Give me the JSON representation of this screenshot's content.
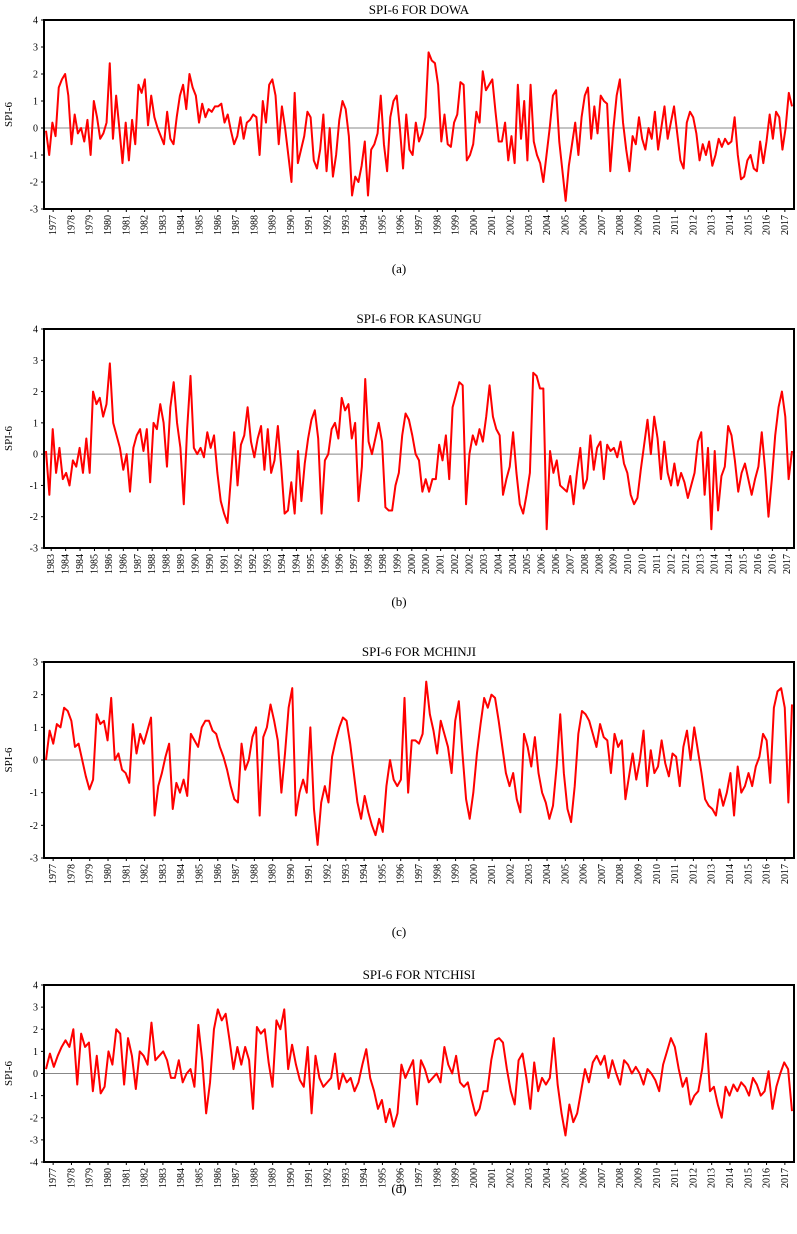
{
  "chart_data": [
    {
      "type": "line",
      "title": "SPI-6 FOR DOWA",
      "ylabel": "SPI-6",
      "caption": "(a)",
      "ylim": [
        -3,
        4
      ],
      "yticks": [
        "-3",
        "-2",
        "-1",
        "0",
        "1",
        "2",
        "3",
        "4"
      ],
      "xticks": [
        "1977",
        "1978",
        "1979",
        "1980",
        "1981",
        "1982",
        "1983",
        "1984",
        "1985",
        "1986",
        "1987",
        "1988",
        "1989",
        "1990",
        "1991",
        "1992",
        "1993",
        "1994",
        "1995",
        "1996",
        "1997",
        "1998",
        "1999",
        "2000",
        "2001",
        "2002",
        "2003",
        "2004",
        "2005",
        "2006",
        "2007",
        "2008",
        "2009",
        "2010",
        "2011",
        "2012",
        "2013",
        "2014",
        "2015",
        "2016",
        "2017"
      ],
      "series_color": "#ff0000",
      "series": [
        {
          "x_start": 1977.0,
          "x_end": 2017.9,
          "values": [
            -0.1,
            -1.0,
            0.2,
            -0.3,
            1.5,
            1.8,
            2.0,
            1.2,
            -0.6,
            0.5,
            -0.2,
            0.0,
            -0.5,
            0.3,
            -1.0,
            1.0,
            0.4,
            -0.4,
            -0.2,
            0.2,
            2.4,
            -0.4,
            1.2,
            0.0,
            -1.3,
            0.2,
            -1.2,
            0.3,
            -0.6,
            1.6,
            1.3,
            1.8,
            0.1,
            1.2,
            0.4,
            0.0,
            -0.3,
            -0.6,
            0.6,
            -0.4,
            -0.6,
            0.4,
            1.2,
            1.6,
            0.7,
            2.0,
            1.5,
            1.2,
            0.2,
            0.9,
            0.4,
            0.7,
            0.6,
            0.8,
            0.8,
            0.9,
            0.2,
            0.5,
            -0.1,
            -0.6,
            -0.3,
            0.4,
            -0.4,
            0.2,
            0.3,
            0.5,
            0.4,
            -1.0,
            1.0,
            0.2,
            1.6,
            1.8,
            1.2,
            -0.6,
            0.8,
            0.0,
            -1.0,
            -2.0,
            1.3,
            -1.3,
            -0.8,
            -0.3,
            0.6,
            0.4,
            -1.2,
            -1.5,
            -0.8,
            0.5,
            -1.6,
            0.0,
            -1.8,
            -1.0,
            0.3,
            1.0,
            0.7,
            -0.3,
            -2.5,
            -1.8,
            -2.0,
            -1.4,
            -0.5,
            -2.5,
            -0.8,
            -0.6,
            -0.2,
            1.2,
            -0.6,
            -1.6,
            0.4,
            1.0,
            1.2,
            0.0,
            -1.5,
            0.5,
            -0.8,
            -1.0,
            0.2,
            -0.5,
            -0.2,
            0.4,
            2.8,
            2.5,
            2.4,
            1.6,
            -0.5,
            0.5,
            -0.6,
            -0.7,
            0.2,
            0.5,
            1.7,
            1.6,
            -1.2,
            -1.0,
            -0.6,
            0.6,
            0.2,
            2.1,
            1.4,
            1.6,
            1.8,
            0.6,
            -0.5,
            -0.5,
            0.2,
            -1.2,
            -0.3,
            -1.3,
            1.6,
            -0.4,
            1.0,
            -1.2,
            1.6,
            -0.5,
            -1.0,
            -1.3,
            -2.0,
            -1.0,
            0.0,
            1.2,
            1.4,
            -0.5,
            -1.6,
            -2.7,
            -1.4,
            -0.6,
            0.2,
            -1.0,
            0.4,
            1.2,
            1.5,
            -0.4,
            0.8,
            -0.2,
            1.2,
            1.0,
            0.9,
            -1.6,
            0.0,
            1.2,
            1.8,
            0.2,
            -0.8,
            -1.6,
            -0.3,
            -0.6,
            0.4,
            -0.4,
            -0.8,
            0.0,
            -0.4,
            0.6,
            -0.8,
            0.0,
            0.8,
            -0.4,
            0.2,
            0.8,
            -0.2,
            -1.2,
            -1.5,
            0.2,
            0.6,
            0.4,
            -0.2,
            -1.2,
            -0.6,
            -1.0,
            -0.5,
            -1.4,
            -1.0,
            -0.4,
            -0.7,
            -0.4,
            -0.6,
            -0.5,
            0.4,
            -1.0,
            -1.9,
            -1.8,
            -1.2,
            -1.0,
            -1.5,
            -1.6,
            -0.5,
            -1.3,
            -0.5,
            0.5,
            -0.4,
            0.6,
            0.4,
            -0.8,
            0.0,
            1.3,
            0.8
          ]
        }
      ]
    },
    {
      "type": "line",
      "title": "SPI-6 FOR KASUNGU",
      "ylabel": "SPI-6",
      "caption": "(b)",
      "ylim": [
        -3,
        4
      ],
      "yticks": [
        "-3",
        "-2",
        "-1",
        "0",
        "1",
        "2",
        "3",
        "4"
      ],
      "xticks": [
        "1983",
        "1984",
        "1984",
        "1985",
        "1986",
        "1986",
        "1987",
        "1988",
        "1988",
        "1989",
        "1990",
        "1990",
        "1991",
        "1992",
        "1992",
        "1993",
        "1994",
        "1994",
        "1995",
        "1996",
        "1996",
        "1997",
        "1998",
        "1998",
        "1999",
        "2000",
        "2000",
        "2001",
        "2002",
        "2002",
        "2003",
        "2004",
        "2004",
        "2005",
        "2006",
        "2006",
        "2007",
        "2008",
        "2008",
        "2009",
        "2010",
        "2010",
        "2011",
        "2012",
        "2012",
        "2013",
        "2014",
        "2014",
        "2015",
        "2016",
        "2016",
        "2017"
      ],
      "series_color": "#ff0000",
      "series": [
        {
          "x_start": 1983.0,
          "x_end": 2017.9,
          "values": [
            0.1,
            -1.3,
            0.8,
            -0.6,
            0.2,
            -0.8,
            -0.6,
            -1.0,
            -0.2,
            -0.4,
            0.2,
            -0.6,
            0.5,
            -0.6,
            2.0,
            1.6,
            1.8,
            1.2,
            1.6,
            2.9,
            1.0,
            0.6,
            0.2,
            -0.5,
            0.0,
            -1.2,
            0.2,
            0.6,
            0.8,
            0.1,
            0.8,
            -0.9,
            1.0,
            0.8,
            1.6,
            1.0,
            -0.4,
            1.5,
            2.3,
            1.0,
            0.2,
            -1.6,
            0.8,
            2.5,
            0.2,
            0.0,
            0.2,
            -0.1,
            0.7,
            0.2,
            0.6,
            -0.6,
            -1.5,
            -1.9,
            -2.2,
            -0.8,
            0.7,
            -1.0,
            0.3,
            0.6,
            1.5,
            0.4,
            -0.1,
            0.5,
            0.9,
            -0.5,
            0.8,
            -0.6,
            -0.2,
            0.9,
            -0.4,
            -1.9,
            -1.8,
            -0.9,
            -1.9,
            0.1,
            -1.5,
            -0.3,
            0.5,
            1.1,
            1.4,
            0.5,
            -1.9,
            -0.2,
            0.0,
            0.8,
            1.0,
            0.5,
            1.8,
            1.4,
            1.6,
            0.5,
            1.0,
            -1.5,
            -0.4,
            2.4,
            0.4,
            0.0,
            0.5,
            1.0,
            0.4,
            -1.7,
            -1.8,
            -1.8,
            -1.0,
            -0.6,
            0.6,
            1.3,
            1.1,
            0.6,
            0.0,
            -0.2,
            -1.2,
            -0.8,
            -1.2,
            -0.8,
            -0.8,
            0.3,
            -0.2,
            0.6,
            -0.8,
            1.5,
            1.9,
            2.3,
            2.2,
            -1.6,
            0.0,
            0.6,
            0.3,
            0.8,
            0.4,
            1.2,
            2.2,
            1.2,
            0.8,
            0.6,
            -1.3,
            -0.8,
            -0.4,
            0.7,
            -0.6,
            -1.6,
            -1.9,
            -1.3,
            -0.6,
            2.6,
            2.5,
            2.1,
            2.1,
            -2.4,
            0.1,
            -0.6,
            -0.2,
            -1.0,
            -1.1,
            -1.2,
            -0.7,
            -1.6,
            -0.6,
            0.2,
            -1.1,
            -0.8,
            0.6,
            -0.5,
            0.2,
            0.4,
            -0.8,
            0.3,
            0.1,
            0.2,
            -0.1,
            0.4,
            -0.3,
            -0.6,
            -1.3,
            -1.6,
            -1.4,
            -0.5,
            0.3,
            1.1,
            0.0,
            1.2,
            0.5,
            -0.8,
            0.4,
            -0.6,
            -1.0,
            -0.3,
            -1.0,
            -0.6,
            -0.9,
            -1.4,
            -1.0,
            -0.6,
            0.4,
            0.7,
            -1.3,
            0.2,
            -2.4,
            0.1,
            -1.8,
            -0.7,
            -0.4,
            0.9,
            0.6,
            -0.2,
            -1.2,
            -0.6,
            -0.3,
            -0.8,
            -1.3,
            -0.8,
            -0.4,
            0.7,
            -0.5,
            -2.0,
            -0.8,
            0.6,
            1.5,
            2.0,
            1.2,
            -0.8,
            0.1
          ]
        }
      ]
    },
    {
      "type": "line",
      "title": "SPI-6 FOR MCHINJI",
      "ylabel": "SPI-6",
      "caption": "(c)",
      "ylim": [
        -3,
        3
      ],
      "yticks": [
        "-3",
        "-2",
        "-1",
        "0",
        "1",
        "2",
        "3"
      ],
      "xticks": [
        "1977",
        "1978",
        "1979",
        "1980",
        "1981",
        "1982",
        "1983",
        "1984",
        "1985",
        "1986",
        "1987",
        "1988",
        "1989",
        "1990",
        "1991",
        "1992",
        "1993",
        "1994",
        "1995",
        "1996",
        "1997",
        "1998",
        "1999",
        "2000",
        "2001",
        "2002",
        "2003",
        "2004",
        "2005",
        "2006",
        "2007",
        "2008",
        "2009",
        "2010",
        "2011",
        "2012",
        "2013",
        "2014",
        "2015",
        "2016",
        "2017"
      ],
      "series_color": "#ff0000",
      "series": [
        {
          "x_start": 1977.0,
          "x_end": 2017.9,
          "values": [
            0.0,
            0.9,
            0.5,
            1.1,
            1.0,
            1.6,
            1.5,
            1.2,
            0.4,
            0.5,
            0.0,
            -0.5,
            -0.9,
            -0.6,
            1.4,
            1.1,
            1.2,
            0.6,
            1.9,
            0.0,
            0.2,
            -0.3,
            -0.4,
            -0.7,
            1.1,
            0.2,
            0.8,
            0.5,
            0.9,
            1.3,
            -1.7,
            -0.8,
            -0.4,
            0.1,
            0.5,
            -1.5,
            -0.7,
            -1.0,
            -0.6,
            -1.1,
            0.8,
            0.6,
            0.4,
            1.0,
            1.2,
            1.2,
            0.9,
            0.8,
            0.4,
            0.1,
            -0.3,
            -0.8,
            -1.2,
            -1.3,
            0.5,
            -0.3,
            0.0,
            0.7,
            1.0,
            -1.7,
            0.7,
            1.0,
            1.7,
            1.2,
            0.6,
            -1.0,
            0.2,
            1.6,
            2.2,
            -1.7,
            -1.0,
            -0.6,
            -1.0,
            1.0,
            -1.5,
            -2.6,
            -1.3,
            -0.8,
            -1.3,
            0.1,
            0.6,
            1.0,
            1.3,
            1.2,
            0.5,
            -0.4,
            -1.3,
            -1.8,
            -1.1,
            -1.6,
            -2.0,
            -2.3,
            -1.8,
            -2.2,
            -0.8,
            0.0,
            -0.6,
            -0.8,
            -0.6,
            1.9,
            -1.0,
            0.6,
            0.6,
            0.5,
            0.8,
            2.4,
            1.4,
            0.9,
            0.2,
            1.2,
            0.8,
            0.4,
            -0.4,
            1.2,
            1.8,
            0.2,
            -1.2,
            -1.8,
            -1.0,
            0.2,
            1.1,
            1.9,
            1.6,
            2.0,
            1.9,
            1.2,
            0.4,
            -0.4,
            -0.8,
            -0.4,
            -1.2,
            -1.6,
            0.8,
            0.4,
            -0.2,
            0.7,
            -0.4,
            -1.0,
            -1.3,
            -1.8,
            -1.4,
            -0.2,
            1.4,
            -0.4,
            -1.5,
            -1.9,
            -0.8,
            0.8,
            1.5,
            1.4,
            1.2,
            0.8,
            0.4,
            1.1,
            0.7,
            0.6,
            -0.4,
            0.8,
            0.4,
            0.6,
            -1.2,
            -0.5,
            0.2,
            -0.6,
            0.0,
            0.9,
            -0.8,
            0.3,
            -0.4,
            -0.2,
            0.6,
            -0.1,
            -0.5,
            0.2,
            0.1,
            -0.8,
            0.4,
            0.9,
            0.0,
            1.0,
            0.3,
            -0.4,
            -1.2,
            -1.4,
            -1.5,
            -1.7,
            -0.9,
            -1.4,
            -1.0,
            -0.4,
            -1.7,
            -0.2,
            -1.0,
            -0.8,
            -0.4,
            -0.8,
            -0.2,
            0.1,
            0.8,
            0.6,
            -0.7,
            1.6,
            2.1,
            2.2,
            1.6,
            -1.3,
            1.7
          ]
        }
      ]
    },
    {
      "type": "line",
      "title": "SPI-6 FOR NTCHISI",
      "ylabel": "SPI-6",
      "caption": "(d)",
      "ylim": [
        -4,
        4
      ],
      "yticks": [
        "-4",
        "-3",
        "-2",
        "-1",
        "0",
        "1",
        "2",
        "3",
        "4"
      ],
      "xticks": [
        "1977",
        "1978",
        "1979",
        "1980",
        "1981",
        "1982",
        "1983",
        "1984",
        "1985",
        "1986",
        "1987",
        "1988",
        "1989",
        "1990",
        "1991",
        "1992",
        "1993",
        "1994",
        "1995",
        "1996",
        "1997",
        "1998",
        "1999",
        "2000",
        "2001",
        "2002",
        "2003",
        "2004",
        "2005",
        "2006",
        "2007",
        "2008",
        "2009",
        "2010",
        "2011",
        "2012",
        "2013",
        "2014",
        "2015",
        "2016",
        "2017"
      ],
      "series_color": "#ff0000",
      "series": [
        {
          "x_start": 1977.0,
          "x_end": 2017.9,
          "values": [
            0.2,
            0.9,
            0.3,
            0.8,
            1.2,
            1.5,
            1.2,
            2.0,
            -0.5,
            1.8,
            1.2,
            1.4,
            -0.8,
            0.8,
            -0.9,
            -0.6,
            1.0,
            0.4,
            2.0,
            1.8,
            -0.5,
            1.6,
            0.8,
            -0.7,
            1.0,
            0.8,
            0.4,
            2.3,
            0.6,
            0.8,
            1.0,
            0.6,
            -0.2,
            -0.2,
            0.6,
            -0.4,
            0.0,
            0.2,
            -0.6,
            2.2,
            0.6,
            -1.8,
            -0.4,
            2.0,
            2.9,
            2.4,
            2.7,
            1.5,
            0.2,
            1.2,
            0.4,
            1.2,
            0.6,
            -1.6,
            2.1,
            1.8,
            2.0,
            0.5,
            -0.6,
            2.4,
            2.0,
            2.9,
            0.2,
            1.3,
            0.4,
            -0.3,
            -0.6,
            1.2,
            -1.8,
            0.8,
            -0.2,
            -0.6,
            -0.4,
            -0.2,
            0.9,
            -0.7,
            0.0,
            -0.4,
            -0.2,
            -0.8,
            -0.4,
            0.4,
            1.1,
            -0.2,
            -0.8,
            -1.6,
            -1.2,
            -2.2,
            -1.6,
            -2.4,
            -1.8,
            0.4,
            -0.2,
            0.2,
            0.6,
            -1.4,
            0.6,
            0.2,
            -0.4,
            -0.2,
            0.0,
            -0.4,
            1.2,
            0.4,
            0.0,
            0.8,
            -0.4,
            -0.6,
            -0.4,
            -1.2,
            -1.9,
            -1.6,
            -0.8,
            -0.8,
            0.6,
            1.5,
            1.6,
            1.4,
            0.2,
            -0.8,
            -1.4,
            0.6,
            0.9,
            -0.2,
            -1.6,
            0.5,
            -0.8,
            -0.2,
            -0.5,
            -0.2,
            1.6,
            -0.5,
            -1.8,
            -2.8,
            -1.4,
            -2.2,
            -1.8,
            -0.8,
            0.2,
            -0.4,
            0.5,
            0.8,
            0.4,
            0.8,
            -0.2,
            0.6,
            0.0,
            -0.5,
            0.6,
            0.4,
            0.0,
            0.3,
            0.0,
            -0.5,
            0.2,
            0.0,
            -0.3,
            -0.8,
            0.4,
            1.0,
            1.6,
            1.2,
            0.2,
            -0.6,
            -0.2,
            -1.4,
            -1.0,
            -0.8,
            0.2,
            1.8,
            -0.8,
            -0.6,
            -1.4,
            -2.0,
            -0.6,
            -1.0,
            -0.5,
            -0.8,
            -0.4,
            -0.6,
            -1.0,
            -0.2,
            -0.5,
            -1.0,
            -0.8,
            0.1,
            -1.6,
            -0.6,
            0.0,
            0.5,
            0.2,
            -1.7
          ]
        }
      ]
    }
  ]
}
